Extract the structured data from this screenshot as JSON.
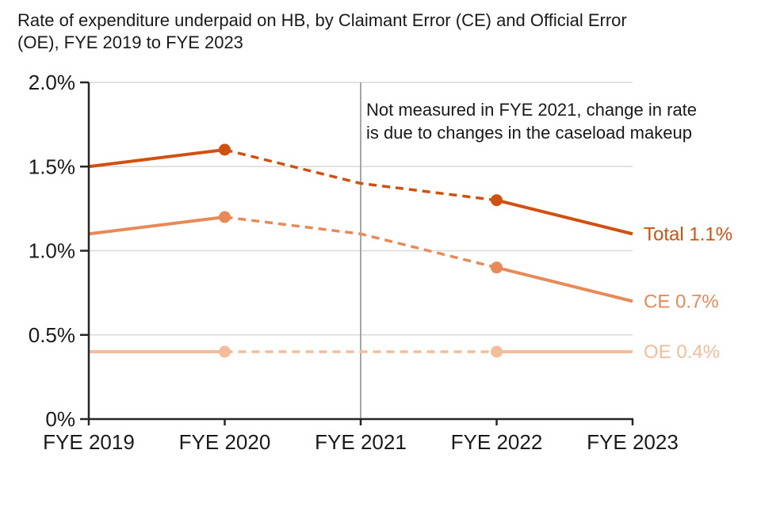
{
  "title_lines": [
    "Rate of expenditure underpaid on HB, by Claimant Error (CE) and Official Error",
    "(OE), FYE 2019 to FYE 2023"
  ],
  "annotation_lines": [
    "Not measured in FYE 2021, change in rate",
    "is due to changes in the caseload makeup"
  ],
  "colors": {
    "axis": "#262626",
    "gridline": "#d9d9d9",
    "vertical_rule": "#a6a6a6",
    "text": "#1a1a1a",
    "total": "#d2500f",
    "ce": "#e78a58",
    "oe": "#f3bd9b"
  },
  "chart_data": {
    "type": "line",
    "title": "Rate of expenditure underpaid on HB, by Claimant Error (CE) and Official Error (OE), FYE 2019 to FYE 2023",
    "categories": [
      "FYE 2019",
      "FYE 2020",
      "FYE 2021",
      "FYE 2022",
      "FYE 2023"
    ],
    "series": [
      {
        "name": "Total",
        "color": "#d2500f",
        "values": [
          1.5,
          1.6,
          1.4,
          1.3,
          1.1
        ],
        "end_label": "Total 1.1%",
        "dashed_between": [
          "FYE 2020",
          "FYE 2022"
        ],
        "markers_at": [
          "FYE 2020",
          "FYE 2022"
        ]
      },
      {
        "name": "CE",
        "color": "#e78a58",
        "values": [
          1.1,
          1.2,
          1.1,
          0.9,
          0.7
        ],
        "end_label": "CE 0.7%",
        "dashed_between": [
          "FYE 2020",
          "FYE 2022"
        ],
        "markers_at": [
          "FYE 2020",
          "FYE 2022"
        ]
      },
      {
        "name": "OE",
        "color": "#f3bd9b",
        "values": [
          0.4,
          0.4,
          0.4,
          0.4,
          0.4
        ],
        "end_label": "OE 0.4%",
        "dashed_between": [
          "FYE 2020",
          "FYE 2022"
        ],
        "markers_at": [
          "FYE 2020",
          "FYE 2022"
        ]
      }
    ],
    "ylim": [
      0,
      2
    ],
    "yticks": [
      {
        "value": 0,
        "label": "0%"
      },
      {
        "value": 0.5,
        "label": "0.5%"
      },
      {
        "value": 1,
        "label": "1.0%"
      },
      {
        "value": 1.5,
        "label": "1.5%"
      },
      {
        "value": 2,
        "label": "2.0%"
      }
    ],
    "xlabel": "",
    "ylabel": "",
    "grid": true,
    "legend_position": "end-of-line-labels-right",
    "vertical_rule_at": "FYE 2021",
    "annotation": "Not measured in FYE 2021, change in rate is due to changes in the caseload makeup"
  }
}
